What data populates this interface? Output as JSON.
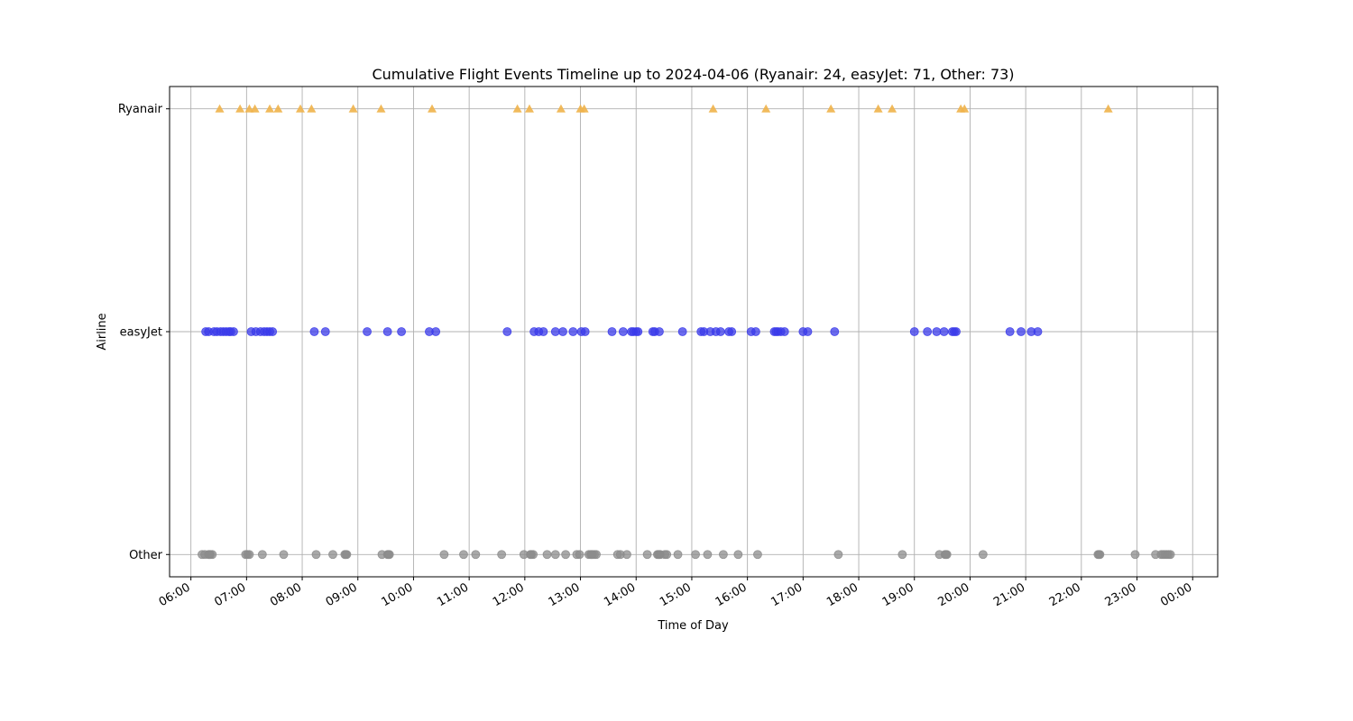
{
  "chart_data": {
    "type": "scatter",
    "title": "Cumulative Flight Events Timeline up to 2024-04-06 (Ryanair: 24, easyJet: 71, Other: 73)",
    "xlabel": "Time of Day",
    "ylabel": "Airline",
    "categories": [
      "Other",
      "easyJet",
      "Ryanair"
    ],
    "x_ticks": [
      "06:00",
      "07:00",
      "08:00",
      "09:00",
      "10:00",
      "11:00",
      "12:00",
      "13:00",
      "14:00",
      "15:00",
      "16:00",
      "17:00",
      "18:00",
      "19:00",
      "20:00",
      "21:00",
      "22:00",
      "23:00",
      "00:00"
    ],
    "xlim": [
      "05:37",
      "00:27"
    ],
    "grid": true,
    "series": [
      {
        "name": "Ryanair",
        "marker": "triangle",
        "color": "#f0b24a",
        "category": "Ryanair",
        "x": [
          "06:31",
          "06:53",
          "07:03",
          "07:09",
          "07:25",
          "07:34",
          "07:58",
          "08:10",
          "08:55",
          "09:25",
          "10:20",
          "11:52",
          "12:05",
          "12:39",
          "13:00",
          "13:04",
          "15:23",
          "16:20",
          "17:30",
          "18:21",
          "18:36",
          "19:50",
          "19:54",
          "22:29"
        ]
      },
      {
        "name": "easyJet",
        "marker": "circle",
        "color": "#3b3bea",
        "category": "easyJet",
        "x": [
          "06:16",
          "06:19",
          "06:25",
          "06:28",
          "06:32",
          "06:35",
          "06:38",
          "06:41",
          "06:43",
          "06:46",
          "07:05",
          "07:10",
          "07:15",
          "07:19",
          "07:22",
          "07:25",
          "07:28",
          "08:13",
          "08:25",
          "09:10",
          "09:32",
          "09:47",
          "10:17",
          "10:24",
          "11:41",
          "12:10",
          "12:15",
          "12:20",
          "12:33",
          "12:41",
          "12:52",
          "13:01",
          "13:05",
          "13:34",
          "13:46",
          "13:55",
          "13:57",
          "14:00",
          "14:02",
          "14:18",
          "14:20",
          "14:25",
          "14:50",
          "15:10",
          "15:13",
          "15:20",
          "15:26",
          "15:31",
          "15:40",
          "15:43",
          "16:04",
          "16:09",
          "16:29",
          "16:31",
          "16:33",
          "16:36",
          "16:40",
          "17:00",
          "17:05",
          "17:34",
          "19:00",
          "19:14",
          "19:24",
          "19:32",
          "19:41",
          "19:43",
          "19:45",
          "20:43",
          "20:55",
          "21:06",
          "21:13"
        ]
      },
      {
        "name": "Other",
        "marker": "circle",
        "color": "#8c8c8c",
        "category": "Other",
        "x": [
          "06:12",
          "06:15",
          "06:19",
          "06:21",
          "06:23",
          "06:59",
          "07:03",
          "07:17",
          "07:40",
          "08:15",
          "08:33",
          "08:46",
          "08:48",
          "09:26",
          "09:32",
          "09:34",
          "09:33",
          "10:33",
          "10:54",
          "11:07",
          "11:35",
          "11:59",
          "12:06",
          "12:09",
          "12:24",
          "12:33",
          "12:44",
          "12:56",
          "12:59",
          "13:09",
          "13:11",
          "13:13",
          "13:15",
          "13:17",
          "13:40",
          "13:43",
          "13:50",
          "14:12",
          "14:23",
          "14:25",
          "14:26",
          "14:31",
          "14:33",
          "14:45",
          "15:04",
          "15:17",
          "15:34",
          "15:50",
          "16:11",
          "17:38",
          "18:47",
          "19:27",
          "19:33",
          "19:35",
          "20:14",
          "22:18",
          "22:19",
          "22:20",
          "22:58",
          "23:20",
          "23:26",
          "23:28",
          "23:30",
          "23:32",
          "23:34",
          "23:36",
          "13:12",
          "14:24",
          "08:47",
          "06:20",
          "07:01",
          "12:07",
          "19:34"
        ]
      }
    ]
  }
}
